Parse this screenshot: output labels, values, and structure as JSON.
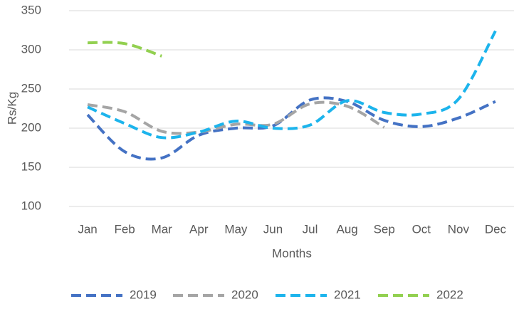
{
  "chart_data": {
    "type": "line",
    "y_label": "Rs/Kg",
    "x_label": "Months",
    "categories": [
      "Jan",
      "Feb",
      "Mar",
      "Apr",
      "May",
      "Jun",
      "Jul",
      "Aug",
      "Sep",
      "Oct",
      "Nov",
      "Dec"
    ],
    "series": [
      {
        "name": "2019",
        "color": "#4472c4",
        "values": [
          217,
          170,
          162,
          191,
          200,
          203,
          236,
          234,
          210,
          202,
          213,
          234
        ]
      },
      {
        "name": "2020",
        "color": "#a5a5a5",
        "values": [
          230,
          221,
          196,
          195,
          205,
          205,
          231,
          228,
          201,
          null,
          null,
          null
        ]
      },
      {
        "name": "2021",
        "color": "#1cb4ec",
        "values": [
          227,
          206,
          188,
          195,
          209,
          200,
          204,
          235,
          220,
          218,
          237,
          324
        ]
      },
      {
        "name": "2022",
        "color": "#92d050",
        "values": [
          309,
          308,
          292,
          null,
          null,
          null,
          null,
          null,
          null,
          null,
          null,
          null
        ]
      }
    ],
    "ylim": [
      100,
      350
    ],
    "yticks": [
      100,
      150,
      200,
      250,
      300,
      350
    ],
    "grid": true,
    "legend": "bottom"
  }
}
